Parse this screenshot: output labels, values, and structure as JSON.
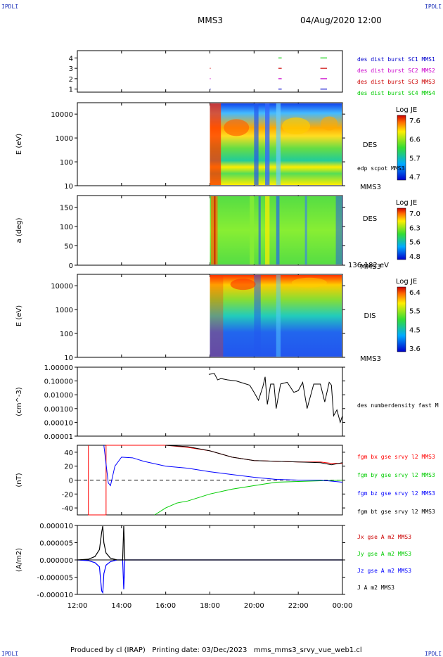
{
  "header": {
    "corner_tl": "IPDLI",
    "corner_tr": "IPDLI",
    "corner_bl": "IPDLI",
    "corner_br": "IPDLI",
    "mission": "MMS3",
    "date": "04/Aug/2020 12:00"
  },
  "footer": {
    "text": "Produced by cl (IRAP)   Printing date: 03/Dec/2023   mms_mms3_srvy_vue_web1.cl"
  },
  "colors": {
    "des_bar": "#0000cc",
    "red": "#ff0000",
    "green": "#00cc00",
    "blue": "#0000ff",
    "black": "#000000",
    "magenta": "#cc00cc"
  },
  "x_axis": {
    "tick_labels": [
      "12:00",
      "14:00",
      "16:00",
      "18:00",
      "20:00",
      "22:00",
      "00:00"
    ],
    "range_hours": [
      12,
      24
    ]
  },
  "chart_data": [
    {
      "type": "scatter",
      "panel": "availability",
      "y_ticks": [
        "4",
        "3",
        "2",
        "1"
      ],
      "legend": [
        {
          "label": "des dist burst SC1 MMS1",
          "color": "#0000cc"
        },
        {
          "label": "des dist burst SC2 MMS2",
          "color": "#cc00cc"
        },
        {
          "label": "des dist burst SC3 MMS3",
          "color": "#cc0000"
        },
        {
          "label": "des dist burst SC4 MMS4",
          "color": "#00cc00"
        }
      ],
      "segments": [
        {
          "level": 4,
          "color": "#00cc00",
          "start": 21.1,
          "end": 21.25
        },
        {
          "level": 4,
          "color": "#00cc00",
          "start": 23.0,
          "end": 23.3
        },
        {
          "level": 3,
          "color": "#cc0000",
          "start": 18.0,
          "end": 18.03
        },
        {
          "level": 3,
          "color": "#cc0000",
          "start": 21.1,
          "end": 21.25
        },
        {
          "level": 3,
          "color": "#cc0000",
          "start": 23.0,
          "end": 23.3
        },
        {
          "level": 2,
          "color": "#cc00cc",
          "start": 18.0,
          "end": 18.03
        },
        {
          "level": 2,
          "color": "#cc00cc",
          "start": 21.1,
          "end": 21.25
        },
        {
          "level": 2,
          "color": "#cc00cc",
          "start": 23.0,
          "end": 23.3
        },
        {
          "level": 1,
          "color": "#0000cc",
          "start": 18.0,
          "end": 18.03
        },
        {
          "level": 1,
          "color": "#0000cc",
          "start": 21.1,
          "end": 21.25
        },
        {
          "level": 1,
          "color": "#0000cc",
          "start": 23.0,
          "end": 23.3
        }
      ]
    },
    {
      "type": "heatmap",
      "panel": "des-energy",
      "ylabel": "E (eV)",
      "y_ticks": [
        "10000",
        "1000",
        "100",
        "10"
      ],
      "ylim": [
        10,
        30000
      ],
      "log_y": true,
      "data_start_hour": 18.0,
      "label": "DES",
      "spacecraft": "MMS3",
      "overlay_label": "edp scpot MMS3",
      "colorbar": {
        "title": "Log JE",
        "ticks": [
          "7.6",
          "6.6",
          "5.7",
          "4.7"
        ]
      }
    },
    {
      "type": "heatmap",
      "panel": "des-pitch",
      "ylabel": "a (deg)",
      "y_ticks": [
        "150",
        "100",
        "50",
        "0"
      ],
      "ylim": [
        0,
        180
      ],
      "data_start_hour": 18.0,
      "label": "DES",
      "spacecraft": "MMS3",
      "energy_range": "136-182 eV",
      "colorbar": {
        "title": "Log JE",
        "ticks": [
          "7.0",
          "6.3",
          "5.6",
          "4.8"
        ]
      }
    },
    {
      "type": "heatmap",
      "panel": "dis-energy",
      "ylabel": "E (eV)",
      "y_ticks": [
        "10000",
        "1000",
        "100",
        "10"
      ],
      "ylim": [
        10,
        30000
      ],
      "log_y": true,
      "data_start_hour": 18.0,
      "label": "DIS",
      "spacecraft": "MMS3",
      "colorbar": {
        "title": "Log JE",
        "ticks": [
          "6.4",
          "5.5",
          "4.5",
          "3.6"
        ]
      }
    },
    {
      "type": "line",
      "panel": "density",
      "ylabel": "(cm^-3)",
      "y_ticks": [
        "1.00000",
        "0.10000",
        "0.01000",
        "0.00100",
        "0.00010",
        "0.00001"
      ],
      "ylim": [
        1e-05,
        1.0
      ],
      "log_y": true,
      "series": [
        {
          "name": "des numberdensity fast M",
          "color": "#000000",
          "x": [
            17.95,
            18.2,
            18.35,
            18.5,
            18.8,
            19.2,
            19.5,
            19.8,
            20.0,
            20.2,
            20.4,
            20.5,
            20.6,
            20.75,
            20.9,
            21.0,
            21.2,
            21.5,
            21.8,
            22.0,
            22.2,
            22.4,
            22.7,
            23.0,
            23.2,
            23.4,
            23.5,
            23.6,
            23.75,
            23.9,
            24.0
          ],
          "y": [
            0.3,
            0.35,
            0.12,
            0.15,
            0.12,
            0.1,
            0.07,
            0.05,
            0.015,
            0.004,
            0.04,
            0.2,
            0.002,
            0.06,
            0.06,
            0.001,
            0.06,
            0.08,
            0.015,
            0.02,
            0.08,
            0.001,
            0.06,
            0.06,
            0.003,
            0.08,
            0.05,
            0.0003,
            0.0008,
            0.0001,
            0.0003
          ]
        }
      ]
    },
    {
      "type": "line",
      "panel": "magnetic-field",
      "ylabel": "(nT)",
      "y_ticks": [
        "40",
        "20",
        "0",
        "-20",
        "-40"
      ],
      "ylim": [
        -50,
        50
      ],
      "zero_line": true,
      "series": [
        {
          "name": "fgm bx gse srvy l2 MMS3",
          "color": "#ff0000",
          "x": [
            12.5,
            12.5,
            13.3,
            13.3,
            16.0,
            17.0,
            18.0,
            19.0,
            20.0,
            21.0,
            22.0,
            23.0,
            23.5,
            24.0
          ],
          "y": [
            50,
            -50,
            -50,
            50,
            50,
            47,
            42,
            33,
            28,
            27,
            26,
            26,
            24,
            24
          ]
        },
        {
          "name": "fgm by gse srvy l2 MMS3",
          "color": "#00cc00",
          "x": [
            15.5,
            16.0,
            16.5,
            17.0,
            18.0,
            19.0,
            20.0,
            21.0,
            22.0,
            23.0,
            24.0
          ],
          "y": [
            -50,
            -40,
            -33,
            -30,
            -20,
            -13,
            -8,
            -3,
            -2,
            -1,
            0
          ]
        },
        {
          "name": "fgm bz gse srvy l2 MMS3",
          "color": "#0000ff",
          "x": [
            13.2,
            13.4,
            13.5,
            13.7,
            14.0,
            14.5,
            15.0,
            16.0,
            17.0,
            18.0,
            19.0,
            20.0,
            21.0,
            22.0,
            23.0,
            24.0
          ],
          "y": [
            50,
            -4,
            -8,
            20,
            33,
            32,
            27,
            20,
            17,
            12,
            8,
            4,
            1,
            0,
            0,
            -3
          ]
        },
        {
          "name": "fgm bt gse srvy l2 MMS3",
          "color": "#000000",
          "x": [
            16.0,
            17.0,
            18.0,
            19.0,
            20.0,
            21.0,
            22.0,
            23.0,
            23.5,
            24.0
          ],
          "y": [
            50,
            48,
            42,
            33,
            28,
            27,
            26,
            25,
            22,
            25
          ]
        }
      ]
    },
    {
      "type": "line",
      "panel": "current",
      "ylabel": "(A/m2)",
      "y_ticks": [
        "0.000010",
        "0.000005",
        "0.000000",
        "-0.000005",
        "-0.000010"
      ],
      "ylim": [
        -1e-05,
        1e-05
      ],
      "series": [
        {
          "name": "Jx gse A m2 MMS3",
          "color": "#cc0000"
        },
        {
          "name": "Jy gse A m2 MMS3",
          "color": "#00cc00"
        },
        {
          "name": "Jz gse A m2 MMS3",
          "color": "#0000ff",
          "x": [
            12.0,
            12.5,
            12.8,
            13.0,
            13.1,
            13.15,
            13.2,
            13.3,
            13.5,
            13.8,
            14.05,
            14.1,
            14.15,
            15.0,
            24.0
          ],
          "y": [
            0,
            -2e-07,
            -8e-07,
            -2e-06,
            -9e-06,
            -9.5e-06,
            -4e-06,
            -1.5e-06,
            -5e-07,
            0,
            0,
            -8.5e-06,
            0,
            0,
            0
          ]
        },
        {
          "name": "J A m2 MMS3",
          "color": "#000000",
          "x": [
            12.0,
            12.5,
            12.8,
            13.0,
            13.1,
            13.15,
            13.2,
            13.3,
            13.5,
            13.8,
            14.05,
            14.1,
            14.15,
            15.0,
            24.0
          ],
          "y": [
            0,
            2e-07,
            1e-06,
            3e-06,
            8e-06,
            9.8e-06,
            5e-06,
            2e-06,
            5e-07,
            0,
            0,
            9.8e-06,
            0,
            0,
            0
          ]
        }
      ]
    }
  ]
}
